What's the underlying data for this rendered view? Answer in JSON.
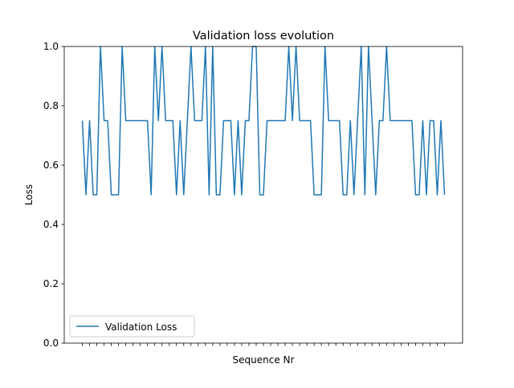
{
  "chart_data": {
    "type": "line",
    "title": "Validation loss evolution",
    "xlabel": "Sequence Nr",
    "ylabel": "Loss",
    "ylim": [
      0.0,
      1.0
    ],
    "y_ticks": [
      "0.0",
      "0.2",
      "0.4",
      "0.6",
      "0.8",
      "1.0"
    ],
    "x_tick_labels_shown": false,
    "grid": false,
    "legend_position": "lower left",
    "series": [
      {
        "name": "Validation Loss",
        "color": "#1f77b4",
        "values": [
          0.75,
          0.5,
          0.75,
          0.5,
          0.5,
          1.0,
          0.75,
          0.75,
          0.5,
          0.5,
          0.5,
          1.0,
          0.75,
          0.75,
          0.75,
          0.75,
          0.75,
          0.75,
          0.75,
          0.5,
          1.0,
          0.75,
          1.0,
          0.75,
          0.75,
          0.75,
          0.5,
          0.75,
          0.5,
          0.75,
          1.0,
          0.75,
          0.75,
          0.75,
          1.0,
          0.5,
          1.0,
          0.5,
          0.5,
          0.75,
          0.75,
          0.75,
          0.5,
          0.75,
          0.5,
          0.75,
          0.75,
          1.0,
          1.0,
          0.5,
          0.5,
          0.75,
          0.75,
          0.75,
          0.75,
          0.75,
          0.75,
          1.0,
          0.75,
          1.0,
          0.75,
          0.75,
          0.75,
          0.75,
          0.5,
          0.5,
          0.5,
          1.0,
          0.75,
          0.75,
          0.75,
          0.75,
          0.5,
          0.5,
          0.75,
          0.5,
          0.75,
          1.0,
          0.5,
          1.0,
          0.75,
          0.5,
          0.75,
          0.75,
          1.0,
          0.75,
          0.75,
          0.75,
          0.75,
          0.75,
          0.75,
          0.75,
          0.5,
          0.5,
          0.75,
          0.5,
          0.75,
          0.75,
          0.5,
          0.75,
          0.5
        ]
      }
    ]
  }
}
